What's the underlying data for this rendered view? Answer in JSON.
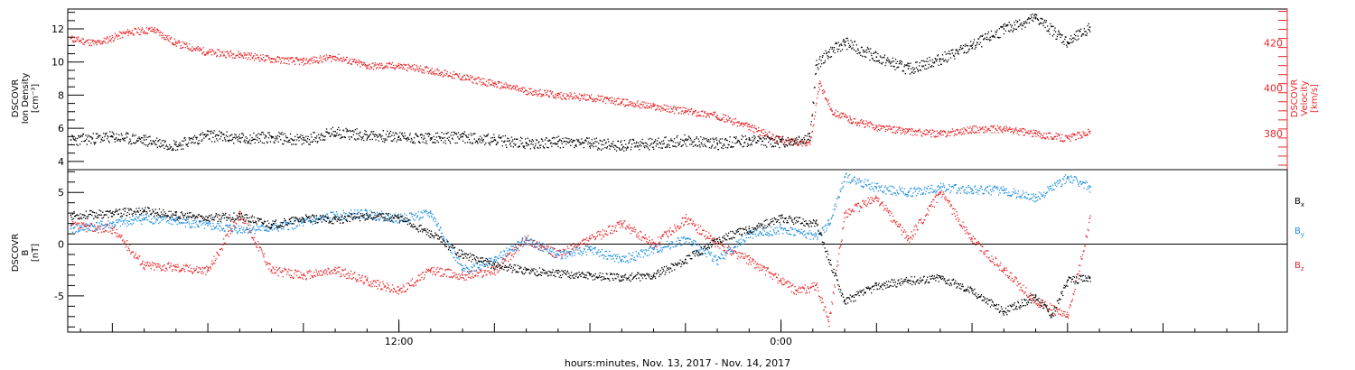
{
  "colors": {
    "black": "#000000",
    "red": "#e8272a",
    "blue": "#1f8fe0"
  },
  "chart_data": [
    {
      "type": "scatter",
      "panel": "ion-density-velocity",
      "ylabel_lines": [
        "DSCOVR",
        "Ion Density",
        "[cm⁻³]"
      ],
      "y2label_lines": [
        "DSCOVR",
        "Velocity",
        "[km/s]"
      ],
      "ylim": [
        3.5,
        13.2
      ],
      "y_ticks": [
        4,
        6,
        8,
        10,
        12
      ],
      "y_tick_labels": [
        "4",
        "6",
        "8",
        "10",
        "12"
      ],
      "y2lim": [
        364,
        435
      ],
      "y2_ticks": [
        380,
        400,
        420
      ],
      "y2_tick_labels": [
        "380",
        "400",
        "420"
      ],
      "x_unit": "hours since 00:00 Nov. 13, 2017",
      "xlim": [
        1.6,
        39.9
      ],
      "series": [
        {
          "axis": "left",
          "color": "black",
          "x": [
            1.7,
            3,
            4,
            5,
            6,
            7,
            8,
            9,
            10,
            11,
            12,
            13,
            14,
            15,
            16,
            17,
            18,
            19,
            20,
            21,
            22,
            23,
            24,
            24.9,
            25.1,
            25.5,
            26,
            27,
            28,
            29,
            30,
            31,
            32,
            33,
            33.7
          ],
          "y": [
            5.3,
            5.5,
            5.3,
            5.0,
            5.6,
            5.4,
            5.5,
            5.3,
            5.8,
            5.6,
            5.5,
            5.4,
            5.5,
            5.3,
            5.1,
            5.2,
            5.1,
            5.0,
            5.1,
            5.3,
            5.1,
            5.3,
            5.2,
            5.5,
            9.8,
            10.6,
            11.2,
            10.3,
            9.6,
            10.2,
            11.0,
            12.0,
            12.7,
            11.2,
            12.1
          ]
        },
        {
          "axis": "right",
          "color": "red",
          "x": [
            1.7,
            2.5,
            3.5,
            4.3,
            5,
            6,
            7,
            8,
            9,
            10,
            11,
            12,
            13,
            14,
            15,
            16,
            17,
            18,
            19,
            20,
            21,
            22,
            23,
            24,
            24.9,
            25.2,
            25.6,
            26.2,
            27,
            28,
            29,
            30,
            31,
            32,
            33,
            33.7
          ],
          "y": [
            422,
            420,
            425,
            426,
            420,
            416,
            415,
            413,
            412,
            414,
            410,
            410,
            408,
            405,
            402,
            399,
            397,
            396,
            394,
            392,
            390,
            388,
            383,
            377,
            376,
            402,
            390,
            386,
            383,
            381,
            380,
            382,
            382,
            380,
            378,
            381
          ]
        }
      ]
    },
    {
      "type": "scatter",
      "panel": "magnetic-field",
      "ylabel_lines": [
        "DSCOVR",
        "B",
        "[nT]"
      ],
      "ylim": [
        -8.5,
        7.2
      ],
      "y_ticks": [
        -5,
        0,
        5
      ],
      "y_tick_labels": [
        "-5",
        "0",
        "5"
      ],
      "zero_line": true,
      "xlabel": "hours:minutes, Nov. 13, 2017 - Nov. 14, 2017",
      "x_ticks": [
        12,
        24
      ],
      "x_tick_labels": [
        "12:00",
        "0:00"
      ],
      "x_unit": "hours since 00:00 Nov. 13, 2017",
      "xlim": [
        1.6,
        39.9
      ],
      "legend": [
        "Bx",
        "By",
        "Bz"
      ],
      "series": [
        {
          "name": "Bx",
          "color": "black",
          "x": [
            1.7,
            3,
            4,
            5,
            6,
            7,
            8,
            9,
            10,
            11,
            12,
            13,
            14,
            15,
            16,
            17,
            18,
            19,
            20,
            21,
            22,
            23,
            24,
            25.1,
            25.5,
            26,
            27,
            28,
            29,
            30,
            31,
            32,
            32.5,
            33,
            33.7
          ],
          "y": [
            2.8,
            3.0,
            3.3,
            2.8,
            2.6,
            2.7,
            1.9,
            2.5,
            2.4,
            2.8,
            2.6,
            1.0,
            -1.0,
            -2.0,
            -2.5,
            -2.8,
            -3.0,
            -3.2,
            -3.0,
            -1.5,
            0.5,
            1.5,
            2.5,
            2.0,
            -1.5,
            -5.5,
            -4.0,
            -3.5,
            -3.2,
            -4.5,
            -6.5,
            -5.0,
            -6.8,
            -3.5,
            -3.2
          ]
        },
        {
          "name": "By",
          "color": "blue",
          "x": [
            1.7,
            3,
            4,
            5,
            6,
            7,
            8,
            9,
            10,
            11,
            12,
            13,
            14,
            15,
            16,
            17,
            18,
            19,
            20,
            21,
            22,
            23,
            24,
            25.1,
            25.5,
            26,
            27,
            28,
            29,
            30,
            31,
            32,
            33,
            33.7
          ],
          "y": [
            1.5,
            2.0,
            2.5,
            2.3,
            1.8,
            1.5,
            1.6,
            2.1,
            2.8,
            3.0,
            2.5,
            3.0,
            -2.5,
            -1.5,
            0.5,
            -1.0,
            -0.5,
            -1.5,
            -0.5,
            0.5,
            -1.5,
            1.0,
            1.5,
            0.8,
            2.0,
            6.5,
            5.5,
            5.0,
            5.5,
            5.3,
            5.2,
            4.5,
            6.5,
            5.5
          ]
        },
        {
          "name": "Bz",
          "color": "red",
          "x": [
            1.7,
            3,
            4,
            5,
            6,
            7,
            8,
            9,
            10,
            11,
            12,
            13,
            14,
            15,
            16,
            17,
            18,
            19,
            20,
            21,
            22,
            23,
            24,
            24.5,
            25.1,
            25.5,
            26,
            27,
            28,
            29,
            30,
            31,
            32,
            33,
            33.7
          ],
          "y": [
            1.8,
            1.5,
            -2.0,
            -2.2,
            -2.5,
            3.0,
            -2.5,
            -3.0,
            -2.5,
            -3.5,
            -4.5,
            -2.5,
            -3.0,
            -2.5,
            0.5,
            -1.0,
            0.5,
            2.0,
            0.0,
            2.5,
            0.0,
            -1.5,
            -3.5,
            -4.5,
            -4.0,
            -7.5,
            3.0,
            4.5,
            0.5,
            5.0,
            0.5,
            -2.5,
            -5.5,
            -7.0,
            2.5
          ]
        }
      ]
    }
  ]
}
